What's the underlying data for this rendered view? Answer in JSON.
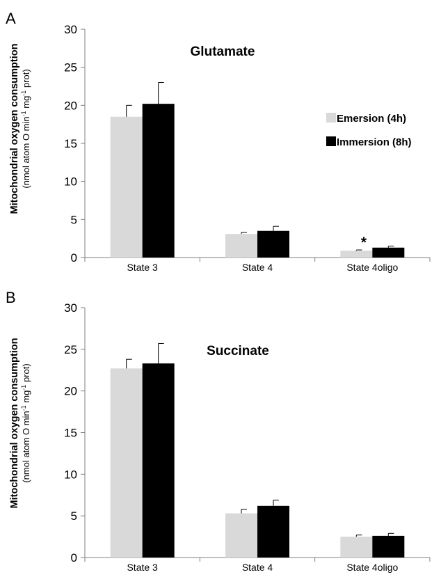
{
  "colors": {
    "emersion": "#d9d9d9",
    "immersion": "#000000",
    "axis": "#7f7f7f",
    "errorbar": "#000000"
  },
  "legend": {
    "placement": "top-right",
    "emersion_label": "Emersion (4h)",
    "immersion_label": "Immersion (8h)"
  },
  "y_label": {
    "line1": "Mitochondrial oxygen consumption",
    "line2_pre": "(nmol atom O min",
    "sup1": "-1",
    "line2_mid": " mg",
    "sup2": "-1",
    "line2_post": " prot)"
  },
  "chart_data": [
    {
      "type": "bar",
      "panel_label": "A",
      "title": "Glutamate",
      "categories": [
        "State 3",
        "State 4",
        "State 4oligo"
      ],
      "series": [
        {
          "name": "Emersion (4h)",
          "values": [
            18.5,
            3.1,
            0.9
          ],
          "errors": [
            1.5,
            0.2,
            0.1
          ]
        },
        {
          "name": "Immersion (8h)",
          "values": [
            20.2,
            3.5,
            1.3
          ],
          "errors": [
            2.8,
            0.6,
            0.2
          ]
        }
      ],
      "annotations": [
        {
          "text": "*",
          "category": "State 4oligo"
        }
      ],
      "ylim": [
        0,
        30
      ],
      "yticks": [
        "0",
        "5",
        "10",
        "15",
        "20",
        "25",
        "30"
      ],
      "grid": false
    },
    {
      "type": "bar",
      "panel_label": "B",
      "title": "Succinate",
      "categories": [
        "State 3",
        "State 4",
        "State 4oligo"
      ],
      "series": [
        {
          "name": "Emersion (4h)",
          "values": [
            22.7,
            5.3,
            2.5
          ],
          "errors": [
            1.1,
            0.5,
            0.2
          ]
        },
        {
          "name": "Immersion (8h)",
          "values": [
            23.3,
            6.2,
            2.6
          ],
          "errors": [
            2.4,
            0.7,
            0.3
          ]
        }
      ],
      "ylim": [
        0,
        30
      ],
      "yticks": [
        "0",
        "5",
        "10",
        "15",
        "20",
        "25",
        "30"
      ],
      "grid": false
    }
  ]
}
